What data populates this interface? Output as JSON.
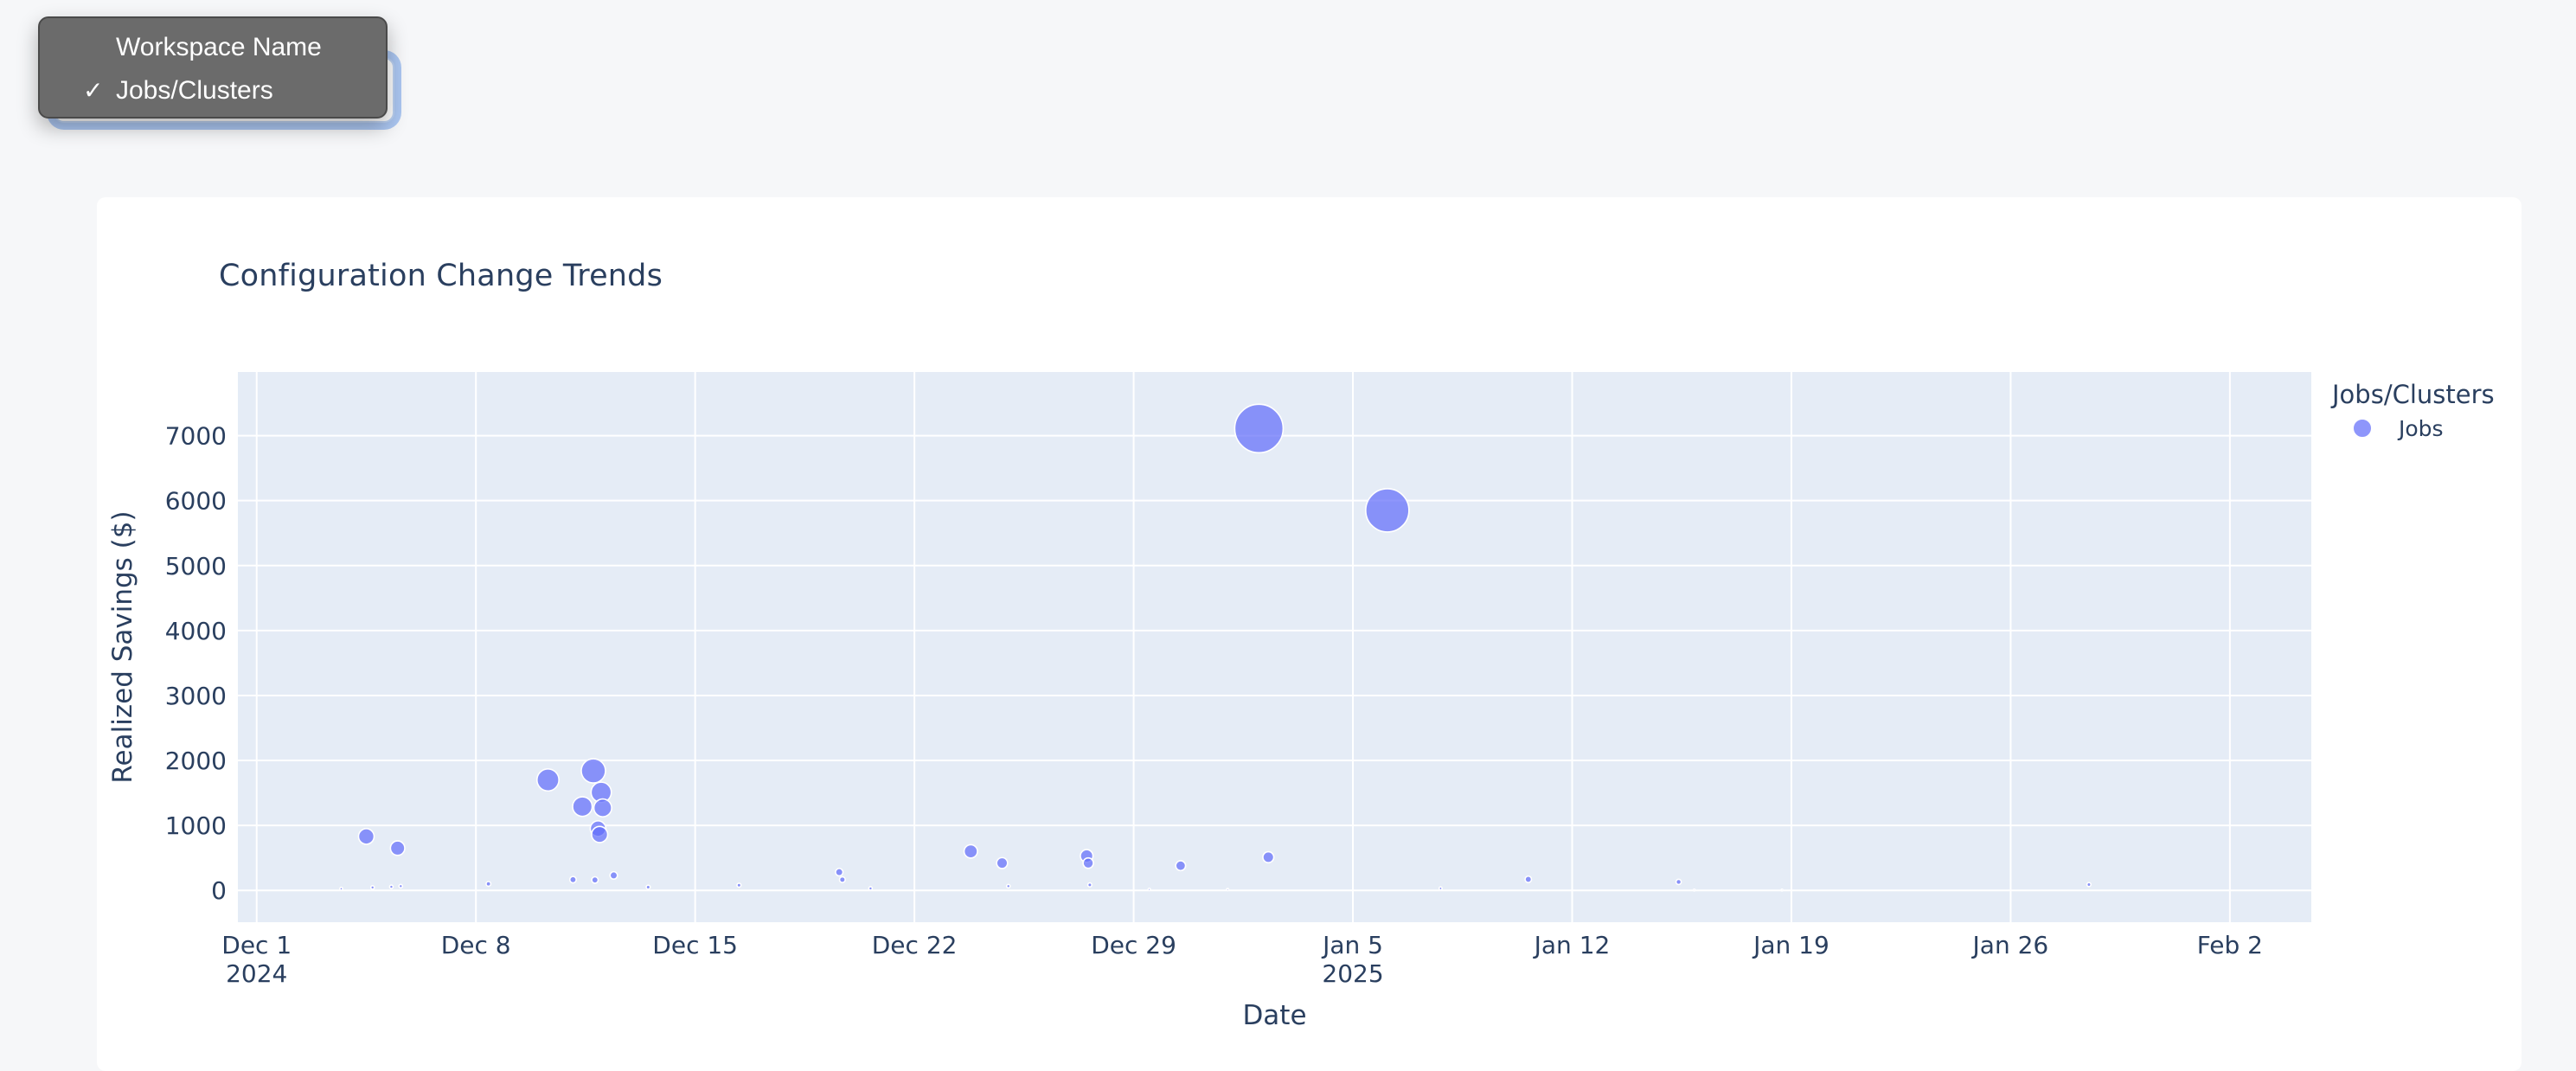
{
  "context_menu": {
    "check_glyph": "✓",
    "items": [
      {
        "label": "Workspace Name",
        "checked": false
      },
      {
        "label": "Jobs/Clusters",
        "checked": true
      }
    ]
  },
  "colors": {
    "page_bg": "#f6f7f9",
    "card_bg": "#ffffff",
    "plot_bg": "#e5ecf6",
    "grid": "#ffffff",
    "text": "#2a3f5f",
    "marker": "#636efa",
    "marker_fill": "rgba(99,110,250,0.72)",
    "marker_outline": "#ffffff",
    "menu_bg": "#6b6b6b",
    "focus_ring": "#abc6f1"
  },
  "chart_data": {
    "type": "scatter",
    "title": "Configuration Change Trends",
    "xlabel": "Date",
    "ylabel": "Realized Savings ($)",
    "grid": true,
    "legend_position": "right",
    "legend": {
      "title": "Jobs/Clusters",
      "items": [
        {
          "label": "Jobs",
          "color": "#636efa"
        }
      ]
    },
    "ylim": [
      -490,
      7980
    ],
    "y_ticks": [
      0,
      1000,
      2000,
      3000,
      4000,
      5000,
      6000,
      7000
    ],
    "xlim_days": [
      -0.6,
      65.6
    ],
    "x_ticks": [
      {
        "day": 0,
        "label": "Dec 1",
        "sub": "2024"
      },
      {
        "day": 7,
        "label": "Dec 8",
        "sub": ""
      },
      {
        "day": 14,
        "label": "Dec 15",
        "sub": ""
      },
      {
        "day": 21,
        "label": "Dec 22",
        "sub": ""
      },
      {
        "day": 28,
        "label": "Dec 29",
        "sub": ""
      },
      {
        "day": 35,
        "label": "Jan 5",
        "sub": "2025"
      },
      {
        "day": 42,
        "label": "Jan 12",
        "sub": ""
      },
      {
        "day": 49,
        "label": "Jan 19",
        "sub": ""
      },
      {
        "day": 56,
        "label": "Jan 26",
        "sub": ""
      },
      {
        "day": 63,
        "label": "Feb 2",
        "sub": ""
      }
    ],
    "series": [
      {
        "name": "Jobs",
        "color": "#636efa",
        "points": [
          {
            "date": "Dec 3",
            "day": 2.7,
            "value": 25,
            "r": 1.6
          },
          {
            "date": "Dec 4",
            "day": 3.5,
            "value": 830,
            "r": 9
          },
          {
            "date": "Dec 4",
            "day": 3.7,
            "value": 45,
            "r": 2
          },
          {
            "date": "Dec 5",
            "day": 4.3,
            "value": 55,
            "r": 2
          },
          {
            "date": "Dec 5",
            "day": 4.5,
            "value": 650,
            "r": 8.3
          },
          {
            "date": "Dec 5",
            "day": 4.6,
            "value": 65,
            "r": 2
          },
          {
            "date": "Dec 8",
            "day": 7.4,
            "value": 100,
            "r": 2.7
          },
          {
            "date": "Dec 10",
            "day": 9.3,
            "value": 1700,
            "r": 12.7
          },
          {
            "date": "Dec 11",
            "day": 10.1,
            "value": 165,
            "r": 3.7
          },
          {
            "date": "Dec 11",
            "day": 10.4,
            "value": 1290,
            "r": 11.3
          },
          {
            "date": "Dec 11",
            "day": 10.75,
            "value": 1840,
            "r": 14
          },
          {
            "date": "Dec 11",
            "day": 10.8,
            "value": 160,
            "r": 3.7
          },
          {
            "date": "Dec 11",
            "day": 10.9,
            "value": 950,
            "r": 9
          },
          {
            "date": "Dec 12",
            "day": 10.95,
            "value": 860,
            "r": 9.3
          },
          {
            "date": "Dec 12",
            "day": 11.0,
            "value": 1510,
            "r": 11.7
          },
          {
            "date": "Dec 12",
            "day": 11.05,
            "value": 1270,
            "r": 10.3
          },
          {
            "date": "Dec 12",
            "day": 11.4,
            "value": 230,
            "r": 4.3
          },
          {
            "date": "Dec 13",
            "day": 12.5,
            "value": 50,
            "r": 2.3
          },
          {
            "date": "Dec 16",
            "day": 15.4,
            "value": 80,
            "r": 2.3
          },
          {
            "date": "Dec 19",
            "day": 18.6,
            "value": 280,
            "r": 4.3
          },
          {
            "date": "Dec 19",
            "day": 18.7,
            "value": 165,
            "r": 3.3
          },
          {
            "date": "Dec 20",
            "day": 19.6,
            "value": 30,
            "r": 2
          },
          {
            "date": "Dec 23",
            "day": 22.8,
            "value": 600,
            "r": 7.7
          },
          {
            "date": "Dec 24",
            "day": 23.8,
            "value": 420,
            "r": 6.3
          },
          {
            "date": "Dec 25",
            "day": 24.0,
            "value": 65,
            "r": 2
          },
          {
            "date": "Dec 27",
            "day": 26.5,
            "value": 530,
            "r": 7.3
          },
          {
            "date": "Dec 27",
            "day": 26.55,
            "value": 420,
            "r": 6
          },
          {
            "date": "Dec 27",
            "day": 26.6,
            "value": 85,
            "r": 2.3
          },
          {
            "date": "Dec 29",
            "day": 28.5,
            "value": 15,
            "r": 1.3
          },
          {
            "date": "Dec 30",
            "day": 29.5,
            "value": 380,
            "r": 5.7
          },
          {
            "date": "Jan 1",
            "day": 31.0,
            "value": 12,
            "r": 1.2
          },
          {
            "date": "Jan 2",
            "day": 32.0,
            "value": 7110,
            "r": 28
          },
          {
            "date": "Jan 2",
            "day": 32.3,
            "value": 510,
            "r": 6.3
          },
          {
            "date": "Jan 6",
            "day": 36.1,
            "value": 5850,
            "r": 25
          },
          {
            "date": "Jan 8",
            "day": 37.8,
            "value": 30,
            "r": 1.7
          },
          {
            "date": "Jan 11",
            "day": 40.6,
            "value": 170,
            "r": 3.7
          },
          {
            "date": "Jan 15",
            "day": 45.4,
            "value": 130,
            "r": 3
          },
          {
            "date": "Jan 16",
            "day": 45.9,
            "value": 5,
            "r": 1
          },
          {
            "date": "Jan 19",
            "day": 48.7,
            "value": 5,
            "r": 1
          },
          {
            "date": "Jan 29",
            "day": 58.5,
            "value": 90,
            "r": 2.3
          }
        ]
      }
    ]
  }
}
